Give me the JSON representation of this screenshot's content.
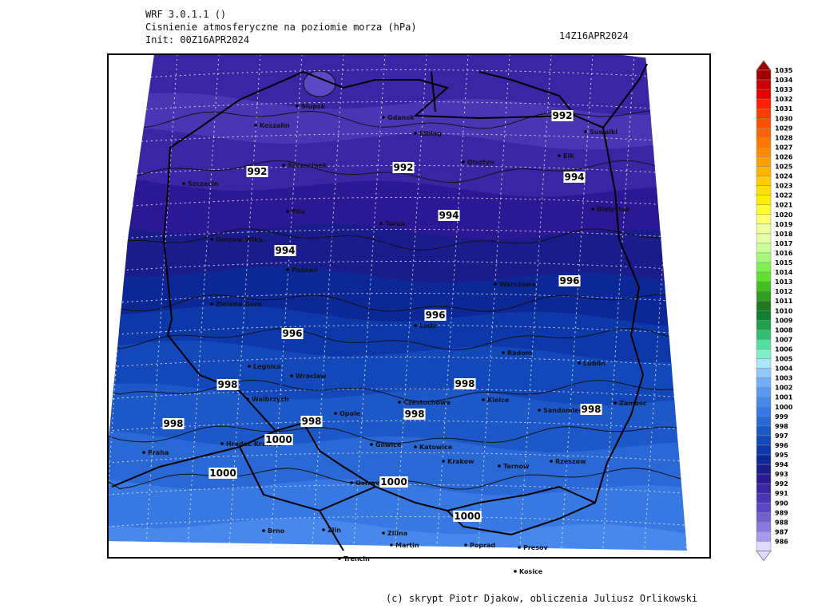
{
  "header": {
    "model": "WRF 3.0.1.1 ()",
    "title": "Cisnienie atmosferyczne na poziomie morza (hPa)",
    "init": "Init: 00Z16APR2024",
    "valid": "14Z16APR2024"
  },
  "footer": "(c) skrypt Piotr Djakow, obliczenia Juliusz Orlikowski",
  "legend": {
    "levels": [
      986,
      987,
      988,
      989,
      990,
      991,
      992,
      993,
      994,
      995,
      996,
      997,
      998,
      999,
      1000,
      1001,
      1002,
      1003,
      1004,
      1005,
      1006,
      1007,
      1008,
      1009,
      1010,
      1011,
      1012,
      1013,
      1014,
      1015,
      1016,
      1017,
      1018,
      1019,
      1020,
      1021,
      1022,
      1023,
      1024,
      1025,
      1026,
      1027,
      1028,
      1029,
      1030,
      1031,
      1032,
      1033,
      1034,
      1035
    ],
    "colors": [
      "#e0d8ff",
      "#a898f0",
      "#8878e0",
      "#7060d0",
      "#5a48c4",
      "#4a36b4",
      "#3a26a4",
      "#2a1894",
      "#1a1c8c",
      "#0c2896",
      "#0c38aa",
      "#1248ba",
      "#1c58c8",
      "#2a68d6",
      "#3878e2",
      "#4888ec",
      "#5a98f2",
      "#70aef8",
      "#90c8fc",
      "#a8e8f8",
      "#80f0c8",
      "#50e0a0",
      "#30c070",
      "#20a048",
      "#108030",
      "#207820",
      "#30a020",
      "#40c020",
      "#60e030",
      "#80f050",
      "#a8f878",
      "#c8ff98",
      "#e0ffa8",
      "#f0ffa0",
      "#fcff70",
      "#ffff30",
      "#fff000",
      "#ffe000",
      "#ffcc00",
      "#ffb400",
      "#ffa000",
      "#ff8c00",
      "#ff7800",
      "#ff6400",
      "#ff5000",
      "#ff3c00",
      "#ff2000",
      "#e80000",
      "#c80000",
      "#a00000"
    ]
  },
  "cities": [
    "Slupsk",
    "Koszalin",
    "Gdansk",
    "Elblag",
    "Suwalki",
    "Elk",
    "Szczecinek",
    "Olsztyn",
    "Szczecin",
    "Bialystok",
    "Pila",
    "Torun",
    "Gorzow Wlkp.",
    "Poznan",
    "Warszawa",
    "Zielona Gora",
    "Lodz",
    "Radom",
    "Legnica",
    "Wroclaw",
    "Lublin",
    "Kielce",
    "Walbrzych",
    "Czestochowa",
    "Opole",
    "Sandomierz",
    "Zamosc",
    "Praha",
    "Hradec Kralove",
    "Gliwice",
    "Katowice",
    "Krakow",
    "Tarnow",
    "Rzeszow",
    "Ostrava",
    "Brno",
    "Zlin",
    "Zilina",
    "Martin",
    "Poprad",
    "Presov",
    "Trencin",
    "Kosice"
  ],
  "contour_labels": [
    992,
    992,
    992,
    994,
    994,
    994,
    996,
    996,
    996,
    998,
    998,
    998,
    998,
    998,
    998,
    1000,
    1000,
    1000,
    1000
  ]
}
